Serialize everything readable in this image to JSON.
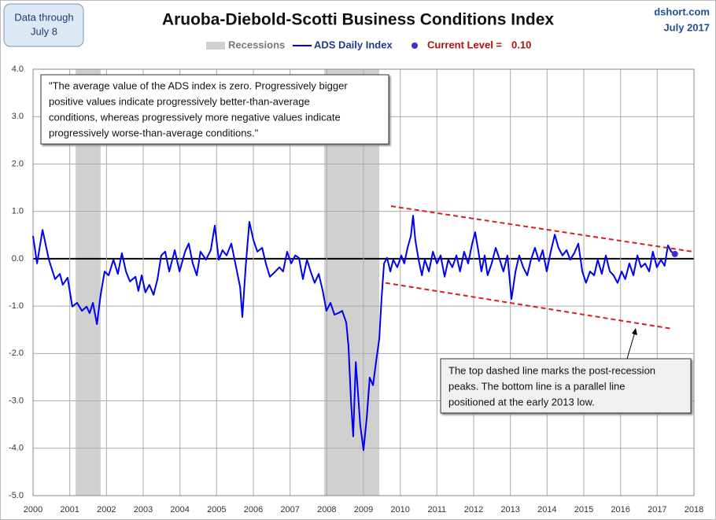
{
  "chart_data": {
    "type": "line",
    "title": "Aruoba-Diebold-Scotti Business Conditions Index",
    "data_note": [
      "Data through",
      "July 8"
    ],
    "source": [
      "dshort.com",
      "July 2017"
    ],
    "xlim": [
      2000,
      2018
    ],
    "ylim": [
      -5,
      4
    ],
    "xticks": [
      2000,
      2001,
      2002,
      2003,
      2004,
      2005,
      2006,
      2007,
      2008,
      2009,
      2010,
      2011,
      2012,
      2013,
      2014,
      2015,
      2016,
      2017,
      2018
    ],
    "yticks": [
      {
        "value": 4,
        "label": "4.0"
      },
      {
        "value": 3,
        "label": "3.0"
      },
      {
        "value": 2,
        "label": "2.0"
      },
      {
        "value": 1,
        "label": "1.0"
      },
      {
        "value": 0,
        "label": "0.0"
      },
      {
        "value": -1,
        "label": "-1.0"
      },
      {
        "value": -2,
        "label": "-2.0"
      },
      {
        "value": -3,
        "label": "-3.0"
      },
      {
        "value": -4,
        "label": "-4.0"
      },
      {
        "value": -5,
        "label": "-5.0"
      }
    ],
    "grid": true,
    "x": [
      2000.0,
      2000.11,
      2000.26,
      2000.43,
      2000.6,
      2000.73,
      2000.81,
      2000.94,
      2001.07,
      2001.2,
      2001.33,
      2001.46,
      2001.54,
      2001.63,
      2001.74,
      2001.84,
      2001.95,
      2002.06,
      2002.19,
      2002.31,
      2002.42,
      2002.53,
      2002.64,
      2002.79,
      2002.87,
      2002.96,
      2003.06,
      2003.17,
      2003.28,
      2003.39,
      2003.49,
      2003.6,
      2003.71,
      2003.86,
      2003.99,
      2004.14,
      2004.24,
      2004.35,
      2004.46,
      2004.56,
      2004.71,
      2004.84,
      2004.95,
      2005.06,
      2005.16,
      2005.27,
      2005.4,
      2005.53,
      2005.64,
      2005.7,
      2005.79,
      2005.89,
      2006.0,
      2006.11,
      2006.24,
      2006.34,
      2006.45,
      2006.6,
      2006.71,
      2006.81,
      2006.92,
      2007.03,
      2007.14,
      2007.24,
      2007.35,
      2007.46,
      2007.56,
      2007.67,
      2007.78,
      2007.89,
      2007.99,
      2008.1,
      2008.21,
      2008.31,
      2008.42,
      2008.53,
      2008.59,
      2008.66,
      2008.72,
      2008.79,
      2008.85,
      2008.91,
      2009.0,
      2009.09,
      2009.17,
      2009.26,
      2009.34,
      2009.43,
      2009.49,
      2009.56,
      2009.64,
      2009.73,
      2009.81,
      2009.92,
      2010.03,
      2010.11,
      2010.2,
      2010.29,
      2010.35,
      2010.41,
      2010.5,
      2010.59,
      2010.67,
      2010.78,
      2010.89,
      2011.0,
      2011.1,
      2011.21,
      2011.31,
      2011.42,
      2011.53,
      2011.63,
      2011.74,
      2011.85,
      2011.96,
      2012.04,
      2012.13,
      2012.21,
      2012.3,
      2012.38,
      2012.49,
      2012.6,
      2012.71,
      2012.81,
      2012.92,
      2013.03,
      2013.14,
      2013.24,
      2013.35,
      2013.46,
      2013.56,
      2013.67,
      2013.78,
      2013.88,
      2013.99,
      2014.1,
      2014.21,
      2014.31,
      2014.42,
      2014.53,
      2014.63,
      2014.74,
      2014.85,
      2014.96,
      2015.06,
      2015.17,
      2015.28,
      2015.38,
      2015.49,
      2015.6,
      2015.71,
      2015.81,
      2015.92,
      2016.03,
      2016.13,
      2016.24,
      2016.35,
      2016.46,
      2016.56,
      2016.67,
      2016.78,
      2016.88,
      2016.99,
      2017.1,
      2017.2,
      2017.29,
      2017.38,
      2017.48
    ],
    "series": [
      {
        "name": "ADS Daily Index",
        "color": "#0000ee",
        "values": [
          0.48,
          -0.1,
          0.61,
          -0.02,
          -0.43,
          -0.32,
          -0.55,
          -0.4,
          -1.01,
          -0.93,
          -1.1,
          -1.01,
          -1.15,
          -0.93,
          -1.38,
          -0.76,
          -0.27,
          -0.35,
          -0.02,
          -0.32,
          0.12,
          -0.27,
          -0.48,
          -0.38,
          -0.68,
          -0.35,
          -0.71,
          -0.55,
          -0.76,
          -0.43,
          0.07,
          0.15,
          -0.27,
          0.18,
          -0.27,
          0.15,
          0.32,
          -0.1,
          -0.35,
          0.15,
          -0.02,
          0.18,
          0.7,
          -0.02,
          0.18,
          0.07,
          0.32,
          -0.18,
          -0.6,
          -1.23,
          -0.18,
          0.78,
          0.4,
          0.15,
          0.23,
          -0.1,
          -0.38,
          -0.27,
          -0.18,
          -0.27,
          0.15,
          -0.1,
          0.07,
          0.02,
          -0.43,
          -0.02,
          -0.27,
          -0.51,
          -0.32,
          -0.68,
          -1.1,
          -0.93,
          -1.18,
          -1.15,
          -1.1,
          -1.35,
          -1.84,
          -3.0,
          -3.75,
          -2.18,
          -2.84,
          -3.5,
          -4.04,
          -3.34,
          -2.51,
          -2.67,
          -2.18,
          -1.68,
          -0.85,
          -0.1,
          0.02,
          -0.27,
          -0.02,
          -0.18,
          0.07,
          -0.1,
          0.23,
          0.48,
          0.91,
          0.4,
          -0.02,
          -0.35,
          -0.02,
          -0.27,
          0.15,
          -0.1,
          0.07,
          -0.38,
          -0.02,
          -0.18,
          0.07,
          -0.27,
          0.15,
          -0.1,
          0.32,
          0.56,
          0.15,
          -0.27,
          0.07,
          -0.35,
          -0.1,
          0.23,
          -0.02,
          -0.27,
          0.07,
          -0.85,
          -0.27,
          0.07,
          -0.18,
          -0.35,
          -0.02,
          0.23,
          -0.05,
          0.18,
          -0.27,
          0.15,
          0.51,
          0.23,
          0.07,
          0.18,
          -0.02,
          0.12,
          0.32,
          -0.27,
          -0.51,
          -0.27,
          -0.35,
          -0.02,
          -0.32,
          0.07,
          -0.27,
          -0.35,
          -0.51,
          -0.27,
          -0.43,
          -0.1,
          -0.35,
          0.07,
          -0.18,
          -0.1,
          -0.27,
          0.15,
          -0.18,
          -0.02,
          -0.15,
          0.28,
          0.15,
          0.1
        ]
      }
    ],
    "recessions": {
      "name": "Recessions",
      "color": "#d0d0d0",
      "ranges": [
        [
          2001.16,
          2001.84
        ],
        [
          2007.93,
          2009.43
        ]
      ]
    },
    "current_level": {
      "label": "Current Level =",
      "x": 2017.48,
      "value": 0.1,
      "value_label": "0.10",
      "color": "#4a2bc9",
      "text_color": "#b01010"
    },
    "trendlines": [
      {
        "color": "#d42020",
        "x": [
          2009.75,
          2017.96
        ],
        "y": [
          1.11,
          0.15
        ]
      },
      {
        "color": "#d42020",
        "x": [
          2009.6,
          2017.42
        ],
        "y": [
          -0.51,
          -1.48
        ]
      }
    ],
    "annotations": [
      {
        "lines": [
          "\"The average value of the ADS index is zero. Progressively bigger",
          "positive values indicate progressively better-than-average",
          "conditions, whereas progressively more negative values indicate",
          "progressively worse-than-average conditions.\""
        ]
      },
      {
        "lines": [
          "The top dashed line marks the post-recession",
          "peaks. The bottom  line is a parallel line",
          "positioned at the early 2013 low."
        ]
      }
    ]
  }
}
